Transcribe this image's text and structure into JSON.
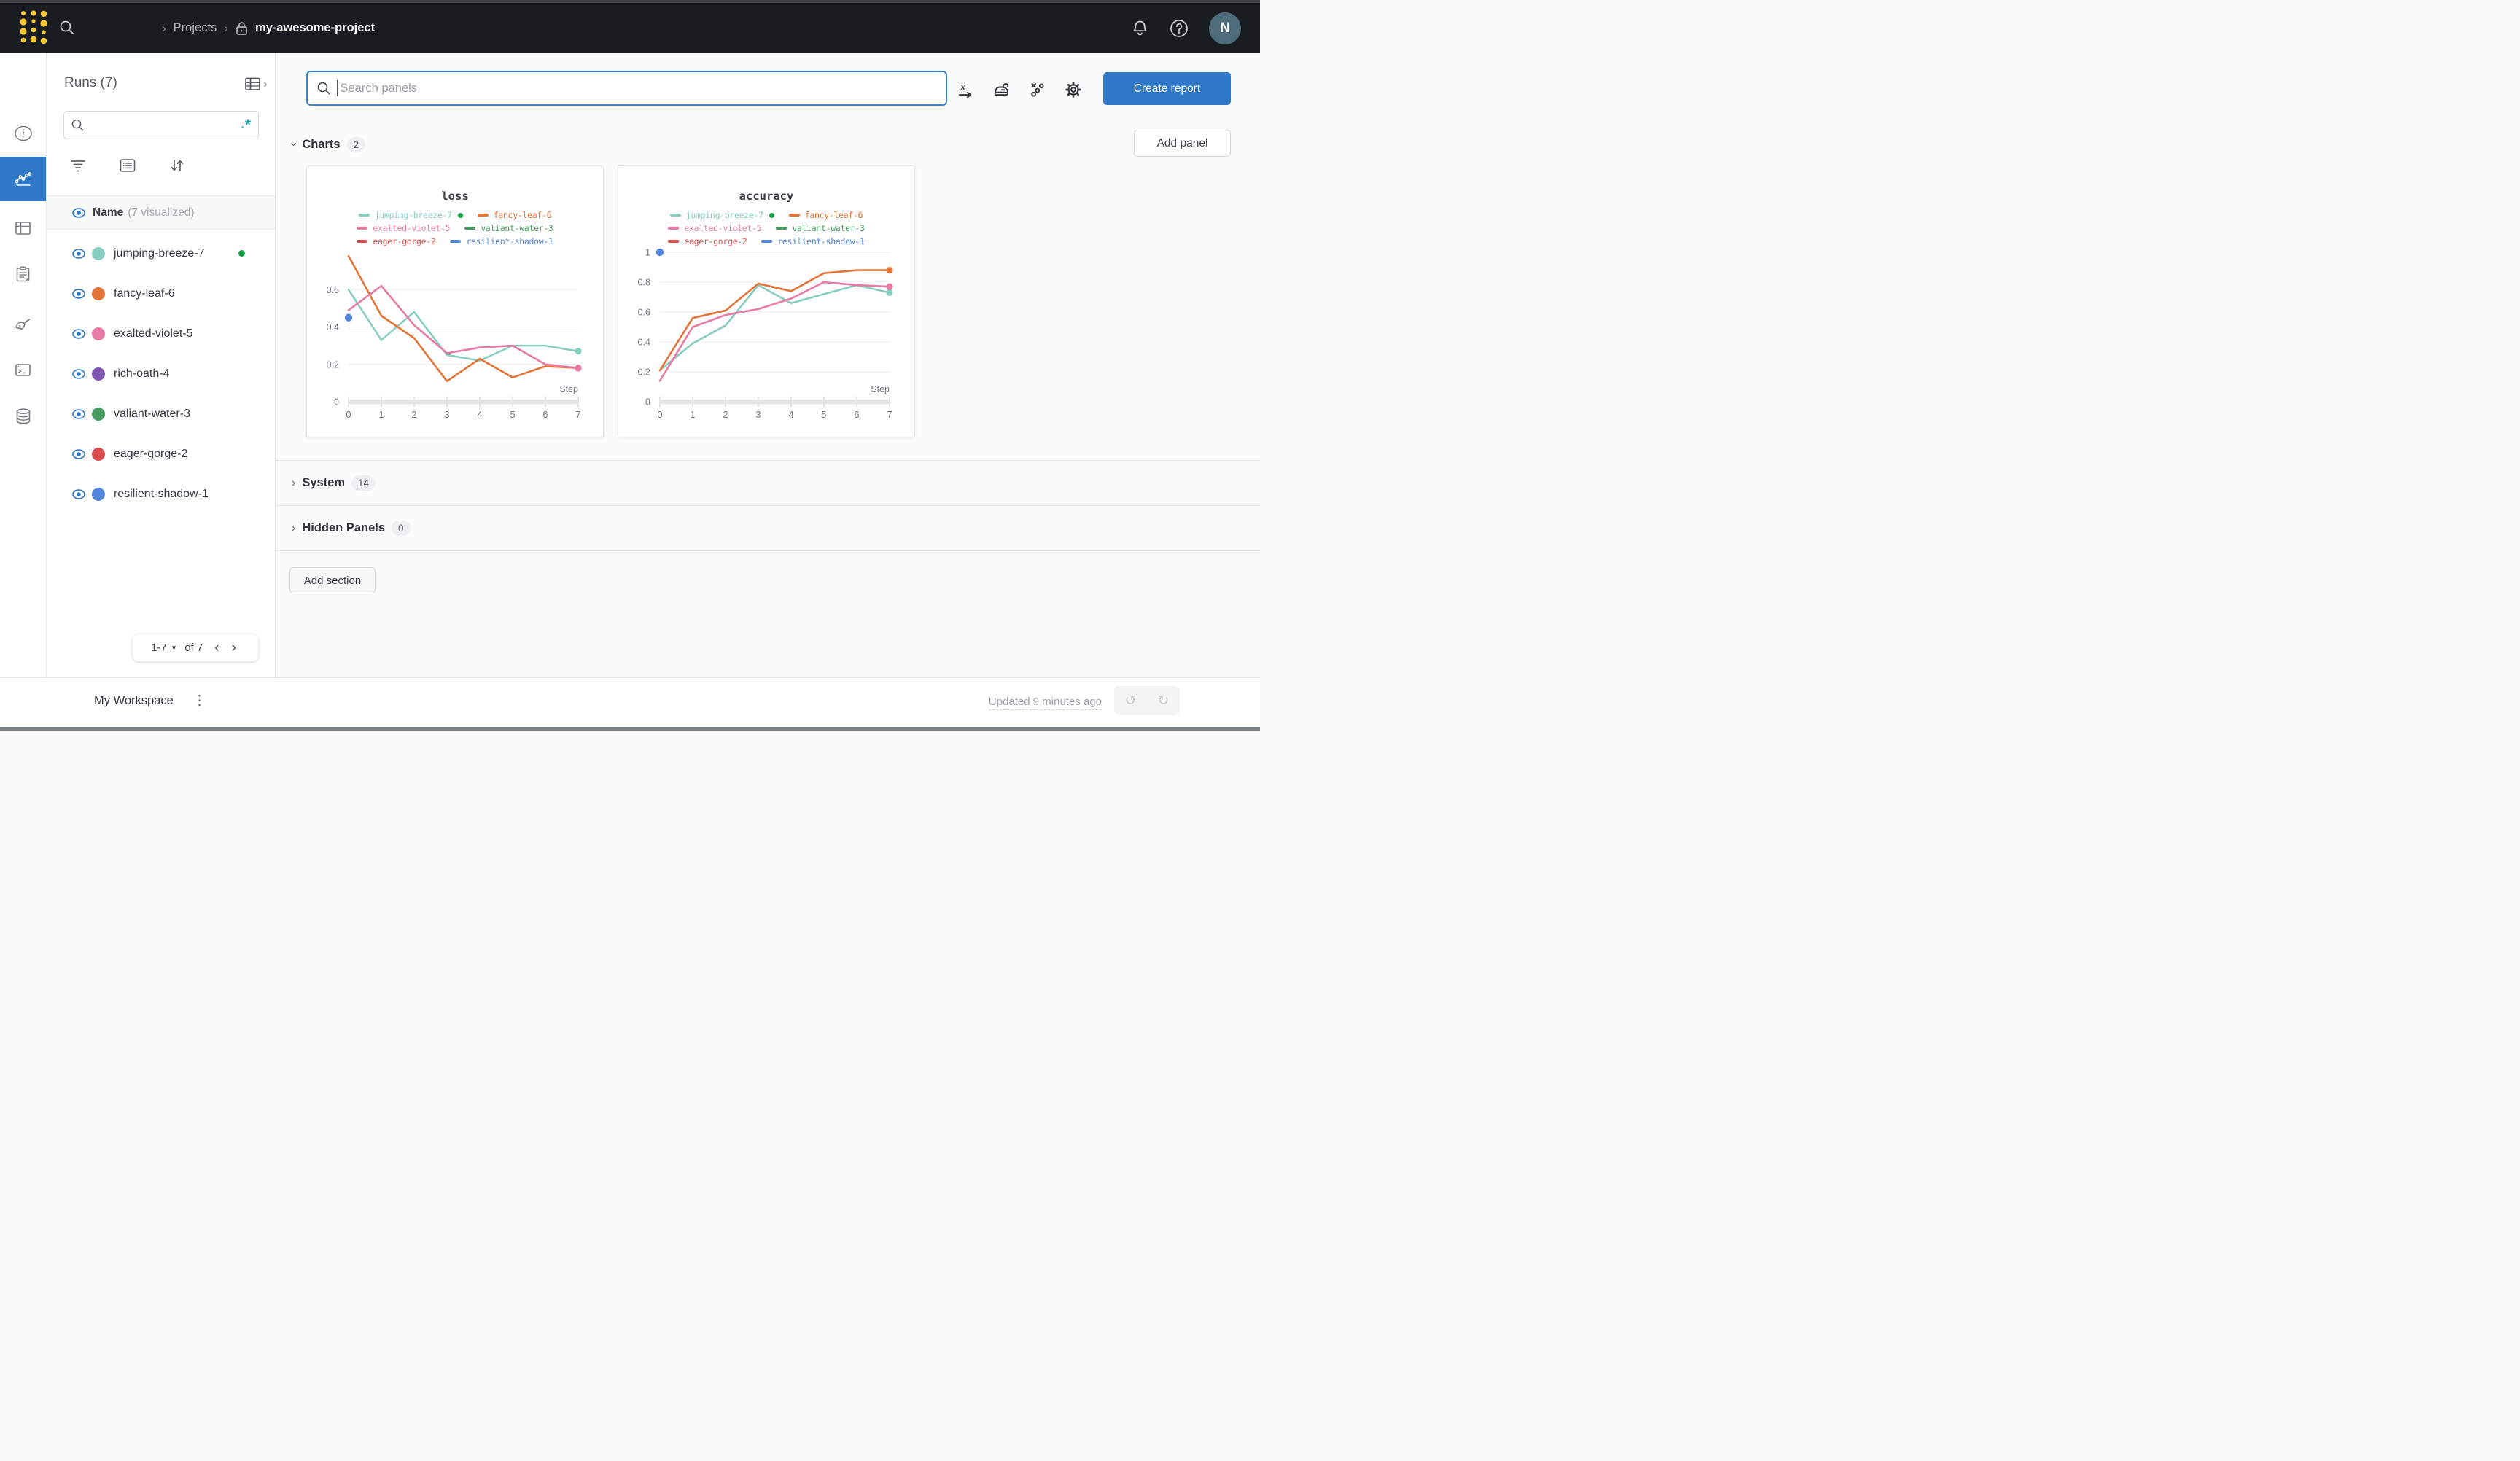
{
  "navbar": {
    "breadcrumb_sep": "›",
    "projects_label": "Projects",
    "project_name": "my-awesome-project",
    "avatar_initial": "N"
  },
  "runs_panel": {
    "title": "Runs (7)",
    "search_placeholder": "",
    "regex_icon": ".*",
    "header": {
      "name": "Name",
      "visualized": "(7 visualized)"
    },
    "runs": [
      {
        "name": "jumping-breeze-7",
        "color": "#87cebf",
        "running": true
      },
      {
        "name": "fancy-leaf-6",
        "color": "#e57439"
      },
      {
        "name": "exalted-violet-5",
        "color": "#e87ba5"
      },
      {
        "name": "rich-oath-4",
        "color": "#7d54b2"
      },
      {
        "name": "valiant-water-3",
        "color": "#479a5f"
      },
      {
        "name": "eager-gorge-2",
        "color": "#da4c4c"
      },
      {
        "name": "resilient-shadow-1",
        "color": "#5387dd"
      }
    ],
    "pagination": {
      "range": "1-7",
      "of": "of 7",
      "prev": "‹",
      "next": "›"
    }
  },
  "toolbar": {
    "search_placeholder": "Search panels",
    "create_report_label": "Create report",
    "icons": [
      "x-axis-icon",
      "smoothing-iron-icon",
      "outliers-scatter-icon",
      "settings-gear-icon"
    ]
  },
  "sections": {
    "charts": {
      "label": "Charts",
      "count": "2"
    },
    "system": {
      "label": "System",
      "count": "14"
    },
    "hidden_panels": {
      "label": "Hidden Panels",
      "count": "0"
    },
    "add_panel_label": "Add panel",
    "add_section_label": "Add section"
  },
  "footer": {
    "workspace_label": "My Workspace",
    "updated_label": "Updated 9 minutes ago"
  },
  "colors": {
    "accent_blue": "#2e78c7",
    "running_green": "#15a341",
    "regex_teal": "#14a8b4",
    "navbar_bg": "#191c20",
    "logo_yellow": "#ffc933"
  },
  "chart_data": [
    {
      "type": "line",
      "title": "loss",
      "xlabel": "Step",
      "x": [
        0,
        1,
        2,
        3,
        4,
        5,
        6,
        7
      ],
      "ylim": [
        0,
        0.8
      ],
      "yticks": [
        0,
        0.2,
        0.4,
        0.6
      ],
      "grid": true,
      "legend_position": "top",
      "series": [
        {
          "name": "jumping-breeze-7",
          "color": "#87cebf",
          "values": [
            0.6,
            0.33,
            0.48,
            0.25,
            0.22,
            0.3,
            0.3,
            0.27
          ]
        },
        {
          "name": "fancy-leaf-6",
          "color": "#e57439",
          "values": [
            0.78,
            0.46,
            0.34,
            0.11,
            0.23,
            0.13,
            0.19,
            0.18
          ]
        },
        {
          "name": "exalted-violet-5",
          "color": "#e87ba5",
          "values": [
            0.49,
            0.62,
            0.41,
            0.26,
            0.29,
            0.3,
            0.2,
            0.18
          ]
        }
      ],
      "points": [
        {
          "name": "resilient-shadow-1",
          "color": "#5387dd",
          "x": 0,
          "y": 0.45
        }
      ],
      "legend": [
        {
          "name": "jumping-breeze-7",
          "color": "#87cebf",
          "running": true
        },
        {
          "name": "fancy-leaf-6",
          "color": "#e57439"
        },
        {
          "name": "exalted-violet-5",
          "color": "#e87ba5"
        },
        {
          "name": "valiant-water-3",
          "color": "#479a5f"
        },
        {
          "name": "eager-gorge-2",
          "color": "#da4c4c"
        },
        {
          "name": "resilient-shadow-1",
          "color": "#5387dd"
        }
      ]
    },
    {
      "type": "line",
      "title": "accuracy",
      "xlabel": "Step",
      "x": [
        0,
        1,
        2,
        3,
        4,
        5,
        6,
        7
      ],
      "ylim": [
        0,
        1.0
      ],
      "yticks": [
        0,
        0.2,
        0.4,
        0.6,
        0.8,
        1
      ],
      "grid": true,
      "legend_position": "top",
      "series": [
        {
          "name": "jumping-breeze-7",
          "color": "#87cebf",
          "values": [
            0.21,
            0.39,
            0.51,
            0.78,
            0.66,
            0.72,
            0.78,
            0.73
          ]
        },
        {
          "name": "fancy-leaf-6",
          "color": "#e57439",
          "values": [
            0.21,
            0.56,
            0.61,
            0.79,
            0.74,
            0.86,
            0.88,
            0.88
          ]
        },
        {
          "name": "exalted-violet-5",
          "color": "#e87ba5",
          "values": [
            0.14,
            0.5,
            0.58,
            0.62,
            0.69,
            0.8,
            0.78,
            0.77
          ]
        }
      ],
      "points": [
        {
          "name": "resilient-shadow-1",
          "color": "#5387dd",
          "x": 0,
          "y": 1.0
        }
      ],
      "legend": [
        {
          "name": "jumping-breeze-7",
          "color": "#87cebf",
          "running": true
        },
        {
          "name": "fancy-leaf-6",
          "color": "#e57439"
        },
        {
          "name": "exalted-violet-5",
          "color": "#e87ba5"
        },
        {
          "name": "valiant-water-3",
          "color": "#479a5f"
        },
        {
          "name": "eager-gorge-2",
          "color": "#da4c4c"
        },
        {
          "name": "resilient-shadow-1",
          "color": "#5387dd"
        }
      ]
    }
  ]
}
